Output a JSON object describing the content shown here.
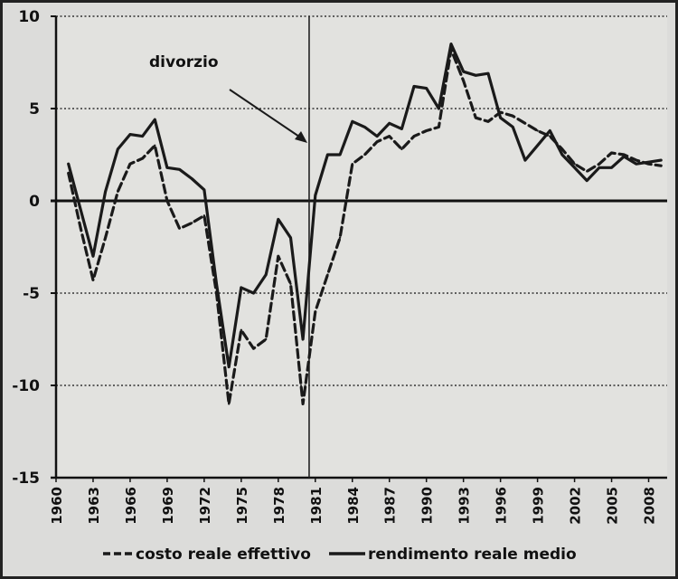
{
  "chart_data": {
    "type": "line",
    "title": "",
    "xlabel": "",
    "ylabel": "",
    "ylim": [
      -15,
      10
    ],
    "y_ticks": [
      "10",
      "5",
      "0",
      "-5",
      "-10",
      "-15"
    ],
    "y_tick_values": [
      10,
      5,
      0,
      -5,
      -10,
      -15
    ],
    "x_ticks": [
      "1960",
      "1963",
      "1966",
      "1969",
      "1972",
      "1975",
      "1978",
      "1981",
      "1984",
      "1987",
      "1990",
      "1993",
      "1996",
      "1999",
      "2002",
      "2005",
      "2008"
    ],
    "x_tick_values": [
      1960,
      1963,
      1966,
      1969,
      1972,
      1975,
      1978,
      1981,
      1984,
      1987,
      1990,
      1993,
      1996,
      1999,
      2002,
      2005,
      2008
    ],
    "xlim": [
      1960,
      2009.5
    ],
    "grid": "horizontal dotted",
    "legend_position": "bottom",
    "annotation": {
      "text": "divorzio",
      "x": 1980.5
    },
    "series": [
      {
        "name": "costo reale effettivo",
        "style": "dashed",
        "color": "#1a1a1a",
        "x": [
          1961,
          1962,
          1963,
          1964,
          1965,
          1966,
          1967,
          1968,
          1969,
          1970,
          1971,
          1972,
          1973,
          1974,
          1975,
          1976,
          1977,
          1978,
          1979,
          1980,
          1981,
          1982,
          1983,
          1984,
          1985,
          1986,
          1987,
          1988,
          1989,
          1990,
          1991,
          1992,
          1993,
          1994,
          1995,
          1996,
          1997,
          1998,
          1999,
          2000,
          2001,
          2002,
          2003,
          2004,
          2005,
          2006,
          2007,
          2008,
          2009
        ],
        "values": [
          1.5,
          -1.5,
          -4.3,
          -2.0,
          0.5,
          2.0,
          2.3,
          3.0,
          0.0,
          -1.5,
          -1.2,
          -0.8,
          -5.0,
          -11.0,
          -7.0,
          -8.0,
          -7.5,
          -3.0,
          -4.5,
          -11.0,
          -6.0,
          -4.0,
          -2.0,
          2.0,
          2.5,
          3.2,
          3.5,
          2.8,
          3.5,
          3.8,
          4.0,
          8.2,
          6.5,
          4.5,
          4.3,
          4.8,
          4.6,
          4.2,
          3.8,
          3.5,
          2.8,
          2.0,
          1.6,
          2.0,
          2.6,
          2.5,
          2.2,
          2.0,
          1.9
        ]
      },
      {
        "name": "rendimento reale medio",
        "style": "solid",
        "color": "#1a1a1a",
        "x": [
          1961,
          1962,
          1963,
          1964,
          1965,
          1966,
          1967,
          1968,
          1969,
          1970,
          1971,
          1972,
          1973,
          1974,
          1975,
          1976,
          1977,
          1978,
          1979,
          1980,
          1981,
          1982,
          1983,
          1984,
          1985,
          1986,
          1987,
          1988,
          1989,
          1990,
          1991,
          1992,
          1993,
          1994,
          1995,
          1996,
          1997,
          1998,
          1999,
          2000,
          2001,
          2002,
          2003,
          2004,
          2005,
          2006,
          2007,
          2008,
          2009
        ],
        "values": [
          2.0,
          -0.5,
          -3.0,
          0.5,
          2.8,
          3.6,
          3.5,
          4.4,
          1.8,
          1.7,
          1.2,
          0.6,
          -4.5,
          -9.0,
          -4.7,
          -5.0,
          -4.0,
          -1.0,
          -2.0,
          -7.5,
          0.3,
          2.5,
          2.5,
          4.3,
          4.0,
          3.5,
          4.2,
          3.9,
          6.2,
          6.1,
          5.0,
          8.5,
          7.0,
          6.8,
          6.9,
          4.5,
          4.0,
          2.2,
          3.0,
          3.8,
          2.5,
          1.8,
          1.1,
          1.8,
          1.8,
          2.4,
          2.0,
          2.1,
          2.2
        ]
      }
    ]
  }
}
